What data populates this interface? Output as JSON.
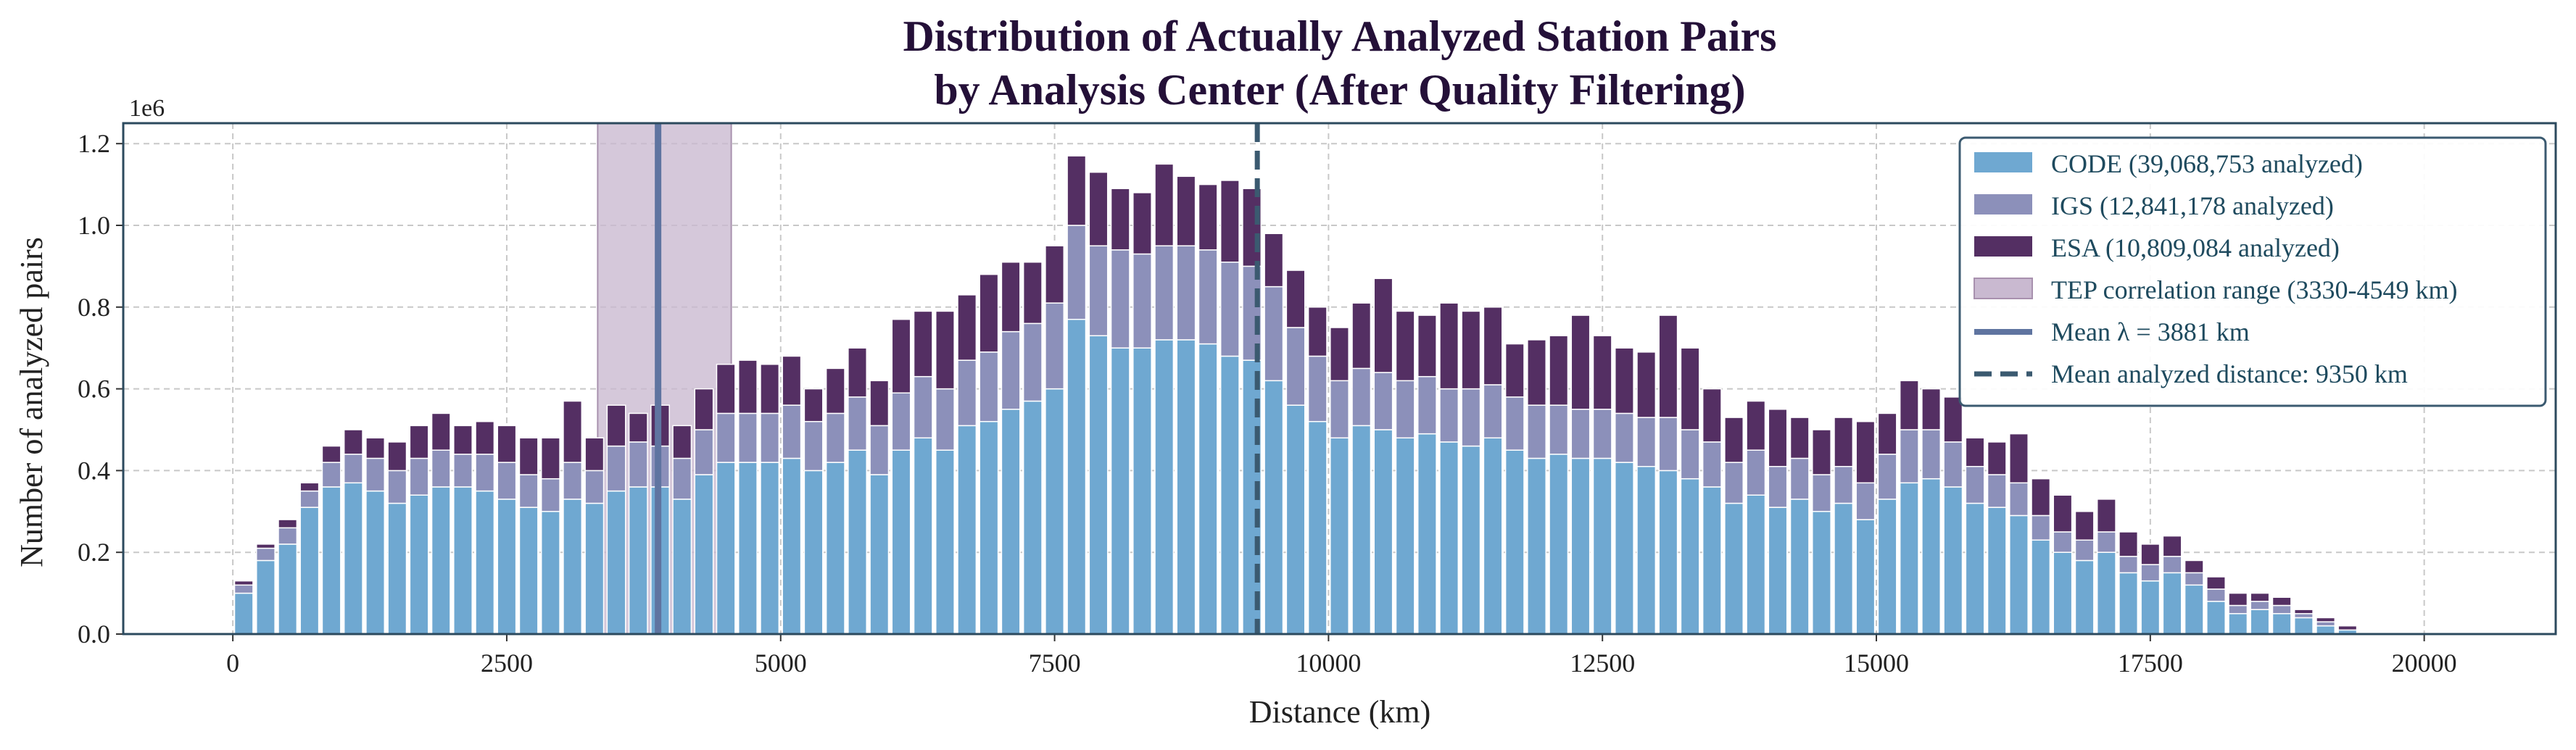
{
  "chart_data": {
    "type": "bar",
    "stacked": true,
    "title": "Distribution of Actually Analyzed Station Pairs",
    "subtitle": "by Analysis Center (After Quality Filtering)",
    "xlabel": "Distance (km)",
    "ylabel": "Number of analyzed pairs",
    "y_offset_label": "1e6",
    "xlim": [
      -1000,
      21200
    ],
    "ylim": [
      0,
      1.25
    ],
    "x_ticks": [
      0,
      2500,
      5000,
      7500,
      10000,
      12500,
      15000,
      17500,
      20000
    ],
    "x_tick_labels": [
      "0",
      "2500",
      "5000",
      "7500",
      "10000",
      "12500",
      "15000",
      "17500",
      "20000"
    ],
    "y_ticks": [
      0,
      0.2,
      0.4,
      0.6,
      0.8,
      1.0,
      1.2
    ],
    "y_tick_labels": [
      "0.0",
      "0.2",
      "0.4",
      "0.6",
      "0.8",
      "1.0",
      "1.2"
    ],
    "grid": true,
    "legend_position": "top-right",
    "bin_width_km": 200,
    "x": [
      100,
      300,
      500,
      700,
      900,
      1100,
      1300,
      1500,
      1700,
      1900,
      2100,
      2300,
      2500,
      2700,
      2900,
      3100,
      3300,
      3500,
      3700,
      3900,
      4100,
      4300,
      4500,
      4700,
      4900,
      5100,
      5300,
      5500,
      5700,
      5900,
      6100,
      6300,
      6500,
      6700,
      6900,
      7100,
      7300,
      7500,
      7700,
      7900,
      8100,
      8300,
      8500,
      8700,
      8900,
      9100,
      9300,
      9500,
      9700,
      9900,
      10100,
      10300,
      10500,
      10700,
      10900,
      11100,
      11300,
      11500,
      11700,
      11900,
      12100,
      12300,
      12500,
      12700,
      12900,
      13100,
      13300,
      13500,
      13700,
      13900,
      14100,
      14300,
      14500,
      14700,
      14900,
      15100,
      15300,
      15500,
      15700,
      15900,
      16100,
      16300,
      16500,
      16700,
      16900,
      17100,
      17300,
      17500,
      17700,
      17900,
      18100,
      18300,
      18500,
      18700,
      18900,
      19100,
      19300,
      19500,
      19700,
      19900
    ],
    "series": [
      {
        "name": "CODE (39,068,753 analyzed)",
        "color": "#6fa8d1",
        "values": [
          0.1,
          0.18,
          0.22,
          0.31,
          0.36,
          0.37,
          0.35,
          0.32,
          0.34,
          0.36,
          0.36,
          0.35,
          0.33,
          0.31,
          0.3,
          0.33,
          0.32,
          0.35,
          0.36,
          0.36,
          0.33,
          0.39,
          0.42,
          0.42,
          0.42,
          0.43,
          0.4,
          0.42,
          0.45,
          0.39,
          0.45,
          0.48,
          0.45,
          0.51,
          0.52,
          0.55,
          0.57,
          0.6,
          0.77,
          0.73,
          0.7,
          0.7,
          0.72,
          0.72,
          0.71,
          0.68,
          0.67,
          0.62,
          0.56,
          0.52,
          0.48,
          0.51,
          0.5,
          0.48,
          0.49,
          0.47,
          0.46,
          0.48,
          0.45,
          0.43,
          0.44,
          0.43,
          0.43,
          0.42,
          0.41,
          0.4,
          0.38,
          0.36,
          0.32,
          0.34,
          0.31,
          0.33,
          0.3,
          0.32,
          0.28,
          0.33,
          0.37,
          0.38,
          0.36,
          0.32,
          0.31,
          0.29,
          0.23,
          0.2,
          0.18,
          0.2,
          0.15,
          0.13,
          0.15,
          0.12,
          0.08,
          0.05,
          0.06,
          0.05,
          0.04,
          0.02,
          0.01,
          0.0,
          0.0,
          0.0
        ]
      },
      {
        "name": "IGS (12,841,178 analyzed)",
        "color": "#8c90ba",
        "values": [
          0.02,
          0.03,
          0.04,
          0.04,
          0.06,
          0.07,
          0.08,
          0.08,
          0.09,
          0.09,
          0.08,
          0.09,
          0.09,
          0.08,
          0.08,
          0.09,
          0.08,
          0.11,
          0.11,
          0.1,
          0.1,
          0.11,
          0.12,
          0.12,
          0.12,
          0.13,
          0.12,
          0.12,
          0.13,
          0.12,
          0.14,
          0.15,
          0.15,
          0.16,
          0.17,
          0.19,
          0.19,
          0.21,
          0.23,
          0.22,
          0.24,
          0.23,
          0.23,
          0.23,
          0.23,
          0.23,
          0.23,
          0.23,
          0.19,
          0.16,
          0.14,
          0.14,
          0.14,
          0.14,
          0.14,
          0.13,
          0.14,
          0.13,
          0.13,
          0.13,
          0.12,
          0.12,
          0.12,
          0.12,
          0.12,
          0.13,
          0.12,
          0.11,
          0.1,
          0.11,
          0.1,
          0.1,
          0.09,
          0.09,
          0.09,
          0.11,
          0.13,
          0.12,
          0.11,
          0.09,
          0.08,
          0.08,
          0.06,
          0.05,
          0.05,
          0.05,
          0.04,
          0.04,
          0.04,
          0.03,
          0.03,
          0.02,
          0.02,
          0.02,
          0.01,
          0.01,
          0.0,
          0.0,
          0.0,
          0.0
        ]
      },
      {
        "name": "ESA (10,809,084 analyzed)",
        "color": "#542f63",
        "values": [
          0.01,
          0.01,
          0.02,
          0.02,
          0.04,
          0.06,
          0.05,
          0.07,
          0.08,
          0.09,
          0.07,
          0.08,
          0.09,
          0.09,
          0.1,
          0.15,
          0.08,
          0.1,
          0.07,
          0.1,
          0.08,
          0.1,
          0.12,
          0.13,
          0.12,
          0.12,
          0.08,
          0.11,
          0.12,
          0.11,
          0.18,
          0.16,
          0.19,
          0.16,
          0.19,
          0.17,
          0.15,
          0.14,
          0.17,
          0.18,
          0.15,
          0.15,
          0.2,
          0.17,
          0.16,
          0.2,
          0.19,
          0.13,
          0.14,
          0.12,
          0.13,
          0.16,
          0.23,
          0.17,
          0.15,
          0.21,
          0.19,
          0.19,
          0.13,
          0.16,
          0.17,
          0.23,
          0.18,
          0.16,
          0.16,
          0.25,
          0.2,
          0.13,
          0.11,
          0.12,
          0.14,
          0.1,
          0.11,
          0.12,
          0.15,
          0.1,
          0.12,
          0.1,
          0.11,
          0.07,
          0.08,
          0.12,
          0.09,
          0.09,
          0.07,
          0.08,
          0.06,
          0.05,
          0.05,
          0.03,
          0.03,
          0.03,
          0.02,
          0.02,
          0.01,
          0.01,
          0.01,
          0.0,
          0.0,
          0.0
        ]
      }
    ],
    "annotations": [
      {
        "kind": "span",
        "x_start": 3330,
        "x_end": 4549,
        "label": "TEP correlation range (3330-4549 km)",
        "color": "#c9b9d0"
      },
      {
        "kind": "vline",
        "x": 3881,
        "style": "solid",
        "label": "Mean λ = 3881 km",
        "color": "#5f74a0"
      },
      {
        "kind": "vline",
        "x": 9350,
        "style": "dashed",
        "label": "Mean analyzed distance: 9350 km",
        "color": "#3b5a70"
      }
    ],
    "legend": [
      {
        "label": "CODE (39,068,753 analyzed)",
        "kind": "patch",
        "color": "#6fa8d1"
      },
      {
        "label": "IGS (12,841,178 analyzed)",
        "kind": "patch",
        "color": "#8c90ba"
      },
      {
        "label": "ESA (10,809,084 analyzed)",
        "kind": "patch",
        "color": "#542f63"
      },
      {
        "label": "TEP correlation range (3330-4549 km)",
        "kind": "span",
        "color": "#c9b9d0"
      },
      {
        "label": "Mean λ = 3881 km",
        "kind": "solid-line",
        "color": "#5f74a0"
      },
      {
        "label": "Mean analyzed distance: 9350 km",
        "kind": "dashed-line",
        "color": "#3b5a70"
      }
    ]
  }
}
